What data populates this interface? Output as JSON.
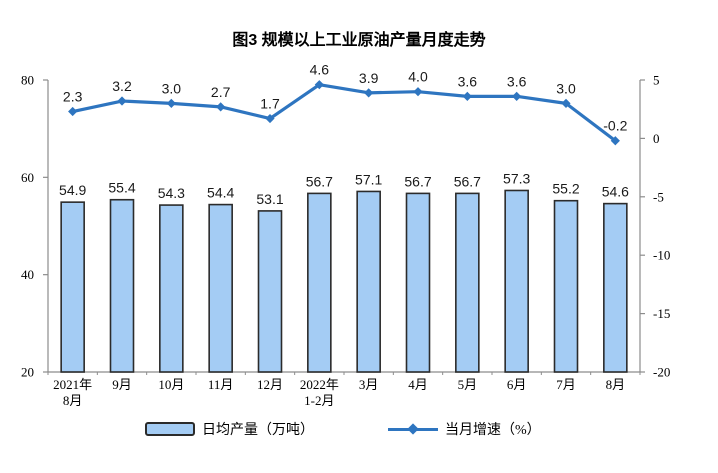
{
  "title": "图3 规模以上工业原油产量月度走势",
  "chart_data": {
    "type": "bar",
    "subtype": "combo-bar-line-dual-axis",
    "categories": [
      [
        "2021年",
        "8月"
      ],
      [
        "9月"
      ],
      [
        "10月"
      ],
      [
        "11月"
      ],
      [
        "12月"
      ],
      [
        "2022年",
        "1-2月"
      ],
      [
        "3月"
      ],
      [
        "4月"
      ],
      [
        "5月"
      ],
      [
        "6月"
      ],
      [
        "7月"
      ],
      [
        "8月"
      ]
    ],
    "series": [
      {
        "name": "日均产量（万吨）",
        "type": "bar",
        "axis": "left",
        "values": [
          54.9,
          55.4,
          54.3,
          54.4,
          53.1,
          56.7,
          57.1,
          56.7,
          56.7,
          57.3,
          55.2,
          54.6
        ]
      },
      {
        "name": "当月增速（%）",
        "type": "line",
        "axis": "right",
        "values": [
          2.3,
          3.2,
          3.0,
          2.7,
          1.7,
          4.6,
          3.9,
          4.0,
          3.6,
          3.6,
          3.0,
          -0.2
        ]
      }
    ],
    "title": "图3 规模以上工业原油产量月度走势",
    "xlabel": "",
    "ylabel_left": "日均产量（万吨）",
    "ylabel_right": "当月增速（%）",
    "left_axis": {
      "min": 20,
      "max": 80,
      "ticks": [
        80,
        60,
        40,
        20
      ]
    },
    "right_axis": {
      "min": -20,
      "max": 5,
      "ticks": [
        5,
        0,
        -5,
        -10,
        -15,
        -20
      ]
    },
    "grid": false,
    "legend_position": "bottom",
    "colors": {
      "bar_fill": "#A4CCF4",
      "bar_border": "#2B2B2B",
      "line": "#2E75C0",
      "axis": "#8C8C8C",
      "label_text": "#1A1A1A"
    }
  },
  "legend": {
    "bar_label": "日均产量（万吨）",
    "line_label": "当月增速（%）"
  }
}
